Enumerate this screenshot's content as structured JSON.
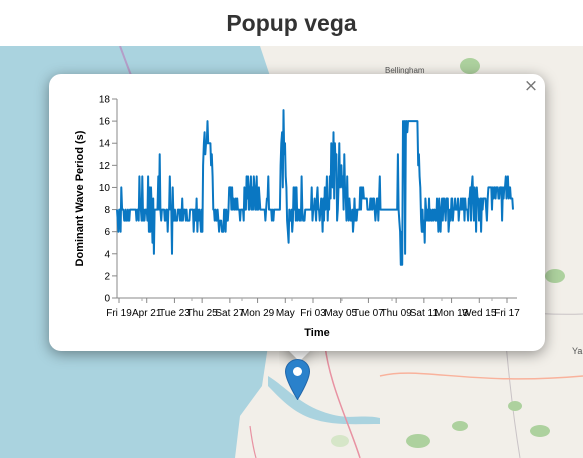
{
  "page": {
    "title": "Popup vega"
  },
  "popup": {
    "close_label": "×"
  },
  "map": {
    "place_label_1": "Bellingham",
    "place_label_2": "Ya"
  },
  "colors": {
    "series": "#0a77c2",
    "water": "#aad3df",
    "land": "#f2efe9",
    "marker": "#2a81cb"
  },
  "chart_data": {
    "type": "line",
    "title": "",
    "xlabel": "Time",
    "ylabel": "Dominant Wave Period (s)",
    "ylim": [
      0,
      18
    ],
    "yticks": [
      0,
      2,
      4,
      6,
      8,
      10,
      12,
      14,
      16,
      18
    ],
    "xticks": [
      "Fri 19",
      "Apr 21",
      "Tue 23",
      "Thu 25",
      "Sat 27",
      "Mon 29",
      "May",
      "Fri 03",
      "May 05",
      "Tue 07",
      "Thu 09",
      "Sat 11",
      "Mon 13",
      "Wed 15",
      "Fri 17"
    ],
    "series": [
      {
        "name": "Dominant Wave Period",
        "values": [
          8,
          7,
          6,
          8,
          8,
          6,
          10,
          8,
          8,
          8,
          7,
          7,
          8,
          7,
          7,
          8,
          7,
          7,
          8,
          8,
          8,
          8,
          8,
          8,
          8,
          8,
          8,
          7,
          8,
          8,
          7,
          11,
          8,
          8,
          7,
          11,
          7,
          8,
          7,
          8,
          8,
          8,
          7,
          11,
          6,
          10,
          6,
          10,
          8,
          5,
          9,
          4,
          8,
          8,
          8,
          8,
          8,
          11,
          8,
          13,
          8,
          7,
          8,
          8,
          8,
          8,
          7,
          7,
          8,
          8,
          6,
          8,
          8,
          11,
          8,
          8,
          4,
          10,
          7,
          7,
          8,
          7,
          7,
          7,
          8,
          8,
          8,
          7,
          8,
          7,
          9,
          7,
          8,
          8,
          8,
          7,
          8,
          7,
          7,
          7,
          7,
          8,
          8,
          8,
          8,
          8,
          6,
          8,
          8,
          7,
          9,
          6,
          8,
          7,
          8,
          7,
          6,
          8,
          6,
          12,
          14,
          15,
          13,
          14,
          14,
          16,
          14,
          14,
          14,
          14,
          12,
          13,
          11,
          8,
          8,
          7,
          8,
          7,
          7,
          8,
          7,
          6,
          7,
          7,
          7,
          6,
          6,
          6,
          8,
          8,
          6,
          8,
          7,
          7,
          8,
          10,
          10,
          10,
          8,
          10,
          8,
          9,
          8,
          8,
          9,
          8,
          9,
          8,
          8,
          8,
          7,
          8,
          8,
          8,
          8,
          7,
          10,
          8,
          8,
          11,
          9,
          11,
          8,
          8,
          10,
          11,
          8,
          10,
          8,
          11,
          10,
          8,
          8,
          11,
          8,
          8,
          10,
          9,
          8,
          8,
          8,
          8,
          8,
          8,
          8,
          7,
          8,
          9,
          9,
          11,
          8,
          8,
          8,
          8,
          7,
          8,
          7,
          8,
          8,
          8,
          8,
          8,
          8,
          8,
          8,
          8,
          12,
          14,
          15,
          10,
          17,
          13,
          14,
          11,
          10,
          7,
          6,
          5,
          8,
          7,
          7,
          8,
          6,
          7,
          10,
          8,
          10,
          7,
          10,
          7,
          8,
          8,
          7,
          8,
          7,
          11,
          8,
          7,
          7,
          7,
          8,
          8,
          8,
          8,
          8,
          8,
          8,
          8,
          8,
          10,
          7,
          8,
          8,
          9,
          8,
          7,
          9,
          10,
          8,
          8,
          7,
          8,
          9,
          8,
          6,
          9,
          7,
          10,
          8,
          9,
          11,
          7,
          9,
          8,
          11,
          9,
          14,
          11,
          10,
          15,
          9,
          14,
          12,
          13,
          7,
          8,
          10,
          14,
          10,
          11,
          12,
          10,
          11,
          8,
          13,
          10,
          9,
          7,
          11,
          8,
          7,
          9,
          8,
          7,
          7,
          8,
          6,
          7,
          9,
          7,
          8,
          7,
          8,
          8,
          8,
          8,
          10,
          8,
          10,
          9,
          10,
          9,
          9,
          9,
          9,
          9,
          8,
          8,
          8,
          8,
          9,
          8,
          9,
          8,
          9,
          9,
          8,
          7,
          8,
          9,
          9,
          7,
          9,
          11,
          8,
          8,
          8,
          8,
          8,
          8,
          8,
          8,
          8,
          8,
          8,
          8,
          8,
          8,
          8,
          8,
          8,
          8,
          8,
          8,
          8,
          8,
          8,
          8,
          13,
          8,
          7,
          6,
          3,
          6,
          3,
          16,
          15,
          16,
          4,
          16,
          16,
          15,
          16,
          16,
          16,
          16,
          16,
          16,
          16,
          16,
          16,
          16,
          16,
          16,
          16,
          16,
          12,
          13,
          11,
          10,
          7,
          6,
          8,
          6,
          7,
          5,
          9,
          8,
          7,
          8,
          7,
          9,
          7,
          8,
          7,
          7,
          8,
          7,
          8,
          8,
          7,
          7,
          9,
          8,
          6,
          9,
          7,
          6,
          8,
          9,
          7,
          9,
          9,
          8,
          7,
          9,
          9,
          9,
          6,
          7,
          8,
          7,
          9,
          9,
          7,
          8,
          8,
          9,
          8,
          8,
          8,
          9,
          7,
          8,
          8,
          9,
          8,
          9,
          8,
          9,
          7,
          9,
          8,
          8,
          8,
          7,
          9,
          9,
          10,
          7,
          10,
          11,
          9,
          7,
          10,
          9,
          6,
          10,
          9,
          9,
          7,
          8,
          9,
          6,
          9,
          8,
          9,
          9,
          9,
          9,
          8,
          7,
          9,
          10,
          10,
          10,
          10,
          10,
          8,
          10,
          9,
          10,
          10,
          9,
          10,
          10,
          10,
          9,
          9,
          10,
          10,
          10,
          7,
          10,
          9,
          10,
          10,
          11,
          9,
          10,
          11,
          9,
          10,
          10,
          9,
          9,
          9,
          8
        ]
      }
    ]
  }
}
